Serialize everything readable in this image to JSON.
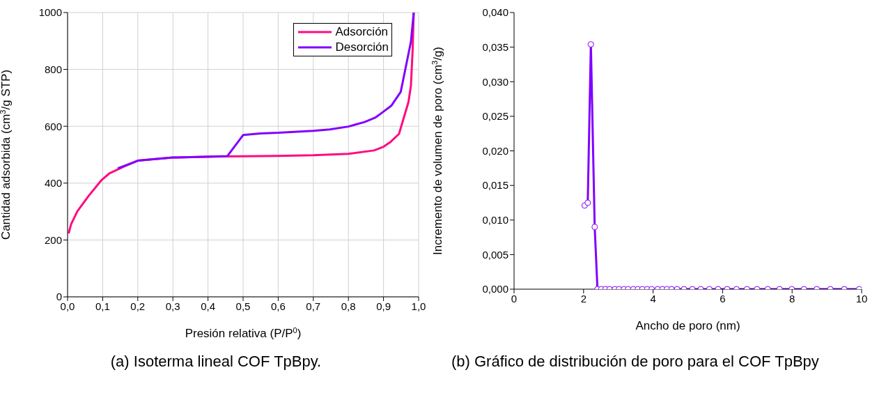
{
  "chart_data": [
    {
      "type": "line",
      "xlabel": "Presión relativa (P/P$^{0}$)",
      "ylabel": "Cantidad adsorbida (cm$^{3}$/g STP)",
      "annotations": [
        "(a) Isoterma lineal COF TpBpy."
      ],
      "xlim": [
        0,
        1
      ],
      "xticks": [
        {
          "value": 0,
          "label": "0,0"
        },
        {
          "value": 0.1,
          "label": "0,1"
        },
        {
          "value": 0.2,
          "label": "0,2"
        },
        {
          "value": 0.3,
          "label": "0,3"
        },
        {
          "value": 0.4,
          "label": "0,4"
        },
        {
          "value": 0.5,
          "label": "0,5"
        },
        {
          "value": 0.6,
          "label": "0,6"
        },
        {
          "value": 0.7,
          "label": "0,7"
        },
        {
          "value": 0.8,
          "label": "0,8"
        },
        {
          "value": 0.9,
          "label": "0,9"
        },
        {
          "value": 1,
          "label": "1,0"
        }
      ],
      "ylim": [
        0,
        1000
      ],
      "yticks": [
        0,
        200,
        400,
        600,
        800,
        1000
      ],
      "grid": true,
      "legend": "top right",
      "marker": "none",
      "line_style": "solid",
      "series": [
        {
          "name": "Adsorción",
          "color": "#ff0a80",
          "x": [
            0.003,
            0.01,
            0.028,
            0.06,
            0.097,
            0.12,
            0.16,
            0.2,
            0.3,
            0.45,
            0.6,
            0.7,
            0.8,
            0.873,
            0.9,
            0.92,
            0.944,
            0.971,
            0.978,
            0.983,
            0.986
          ],
          "values": [
            223,
            255,
            301,
            355,
            411,
            435,
            458,
            479,
            490,
            494,
            496,
            498,
            503,
            515,
            528,
            545,
            573,
            685,
            742,
            870,
            1000
          ]
        },
        {
          "name": "Desorción",
          "color": "#8000ff",
          "x": [
            0.143,
            0.2,
            0.3,
            0.455,
            0.5,
            0.55,
            0.6,
            0.7,
            0.747,
            0.8,
            0.846,
            0.876,
            0.896,
            0.922,
            0.949,
            0.978,
            0.986
          ],
          "values": [
            452,
            479,
            490,
            495,
            569,
            575,
            577,
            584,
            589,
            599,
            615,
            630,
            648,
            672,
            721,
            897,
            1000
          ]
        }
      ]
    },
    {
      "type": "line",
      "xlabel": "Ancho de poro (nm)",
      "ylabel": "Incremento de volumen de poro (cm$^{3}$/g)",
      "annotations": [
        "(b) Gráfico de distribución de poro para el COF TpBpy"
      ],
      "xlim": [
        0,
        10
      ],
      "xticks": [
        0,
        2,
        4,
        6,
        8,
        10
      ],
      "ylim": [
        0,
        0.04
      ],
      "yticks": [
        {
          "value": 0,
          "label": "0,000"
        },
        {
          "value": 0.005,
          "label": "0,005"
        },
        {
          "value": 0.01,
          "label": "0,010"
        },
        {
          "value": 0.015,
          "label": "0,015"
        },
        {
          "value": 0.02,
          "label": "0,020"
        },
        {
          "value": 0.025,
          "label": "0,025"
        },
        {
          "value": 0.03,
          "label": "0,030"
        },
        {
          "value": 0.035,
          "label": "0,035"
        },
        {
          "value": 0.04,
          "label": "0,040"
        }
      ],
      "marker": "circle",
      "line_style": "solid",
      "series": [
        {
          "color": "#8000ff",
          "x": [
            2.03,
            2.12,
            2.21,
            2.32,
            2.4,
            2.51,
            2.63,
            2.75,
            2.9,
            3.02,
            3.16,
            3.28,
            3.43,
            3.56,
            3.69,
            3.83,
            3.96,
            4.13,
            4.27,
            4.4,
            4.53,
            4.69,
            4.89,
            5.13,
            5.37,
            5.62,
            5.87,
            6.13,
            6.4,
            6.7,
            6.99,
            7.3,
            7.64,
            7.99,
            8.34,
            8.71,
            9.1,
            9.5,
            9.93
          ],
          "values": [
            0.0121,
            0.0125,
            0.0354,
            0.009,
            0,
            0,
            0,
            0,
            0,
            0,
            0,
            0,
            0,
            0,
            0,
            0,
            0,
            0,
            0,
            0,
            0,
            0,
            0,
            0,
            0,
            0,
            0,
            0,
            0,
            0,
            0,
            0,
            0,
            0,
            0,
            0,
            0,
            0,
            0
          ]
        }
      ]
    }
  ]
}
